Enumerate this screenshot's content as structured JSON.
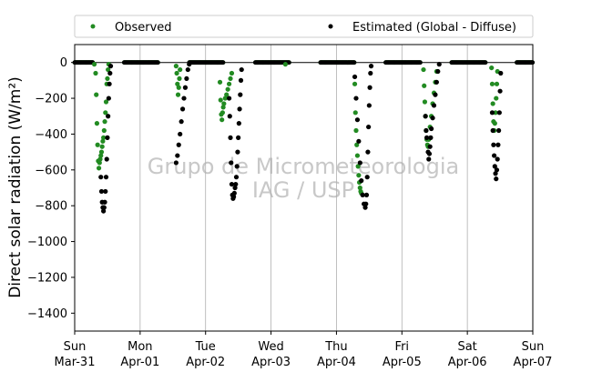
{
  "chart_data": {
    "type": "scatter",
    "title": "",
    "ylabel": "Direct solar radiation (W/m²)",
    "ylim": [
      -1500,
      100
    ],
    "yticks": [
      0,
      -200,
      -400,
      -600,
      -800,
      -1000,
      -1200,
      -1400
    ],
    "xlim_days": [
      0,
      7
    ],
    "xticks": [
      {
        "day": 0,
        "line1": "Sun",
        "line2": "Mar-31"
      },
      {
        "day": 1,
        "line1": "Mon",
        "line2": "Apr-01"
      },
      {
        "day": 2,
        "line1": "Tue",
        "line2": "Apr-02"
      },
      {
        "day": 3,
        "line1": "Wed",
        "line2": "Apr-03"
      },
      {
        "day": 4,
        "line1": "Thu",
        "line2": "Apr-04"
      },
      {
        "day": 5,
        "line1": "Fri",
        "line2": "Apr-05"
      },
      {
        "day": 6,
        "line1": "Sat",
        "line2": "Apr-06"
      },
      {
        "day": 7,
        "line1": "Sun",
        "line2": "Apr-07"
      }
    ],
    "grid": "vertical",
    "legend_placement": "top, outside plot",
    "watermark": [
      "Grupo de Micrometeorologia",
      "IAG / USP"
    ],
    "series": [
      {
        "name": "Observed",
        "color": "#228b22",
        "points": [
          [
            0.3,
            -10
          ],
          [
            0.32,
            -60
          ],
          [
            0.33,
            -180
          ],
          [
            0.34,
            -340
          ],
          [
            0.35,
            -460
          ],
          [
            0.36,
            -550
          ],
          [
            0.37,
            -590
          ],
          [
            0.38,
            -560
          ],
          [
            0.39,
            -540
          ],
          [
            0.4,
            -520
          ],
          [
            0.41,
            -500
          ],
          [
            0.42,
            -470
          ],
          [
            0.43,
            -440
          ],
          [
            0.44,
            -420
          ],
          [
            0.45,
            -380
          ],
          [
            0.46,
            -330
          ],
          [
            0.47,
            -280
          ],
          [
            0.48,
            -220
          ],
          [
            0.49,
            -120
          ],
          [
            0.5,
            -90
          ],
          [
            0.51,
            -40
          ],
          [
            0.52,
            -10
          ],
          [
            1.55,
            -20
          ],
          [
            1.56,
            -60
          ],
          [
            1.57,
            -120
          ],
          [
            1.58,
            -180
          ],
          [
            1.59,
            -140
          ],
          [
            1.6,
            -90
          ],
          [
            1.61,
            -40
          ],
          [
            2.22,
            -110
          ],
          [
            2.23,
            -210
          ],
          [
            2.24,
            -290
          ],
          [
            2.25,
            -320
          ],
          [
            2.26,
            -280
          ],
          [
            2.27,
            -250
          ],
          [
            2.28,
            -230
          ],
          [
            2.3,
            -200
          ],
          [
            2.32,
            -180
          ],
          [
            2.34,
            -150
          ],
          [
            2.36,
            -120
          ],
          [
            2.38,
            -90
          ],
          [
            2.4,
            -60
          ],
          [
            3.22,
            -10
          ],
          [
            4.28,
            -120
          ],
          [
            4.29,
            -280
          ],
          [
            4.3,
            -380
          ],
          [
            4.31,
            -460
          ],
          [
            4.32,
            -520
          ],
          [
            4.33,
            -580
          ],
          [
            4.34,
            -630
          ],
          [
            4.35,
            -670
          ],
          [
            4.36,
            -700
          ],
          [
            4.37,
            -720
          ],
          [
            4.38,
            -730
          ],
          [
            5.33,
            -40
          ],
          [
            5.34,
            -130
          ],
          [
            5.35,
            -220
          ],
          [
            5.36,
            -300
          ],
          [
            5.37,
            -380
          ],
          [
            5.38,
            -430
          ],
          [
            5.39,
            -460
          ],
          [
            5.4,
            -470
          ],
          [
            5.41,
            -430
          ],
          [
            5.43,
            -360
          ],
          [
            5.45,
            -300
          ],
          [
            5.47,
            -230
          ],
          [
            5.49,
            -170
          ],
          [
            5.51,
            -110
          ],
          [
            5.53,
            -50
          ],
          [
            6.37,
            -30
          ],
          [
            6.38,
            -120
          ],
          [
            6.39,
            -230
          ],
          [
            6.4,
            -330
          ],
          [
            6.41,
            -380
          ],
          [
            6.42,
            -340
          ],
          [
            6.43,
            -280
          ],
          [
            6.44,
            -200
          ],
          [
            6.45,
            -120
          ],
          [
            6.46,
            -50
          ]
        ]
      },
      {
        "name": "Estimated (Global - Diffuse)",
        "color": "#000000",
        "points": [
          [
            0.4,
            -640
          ],
          [
            0.41,
            -720
          ],
          [
            0.42,
            -780
          ],
          [
            0.43,
            -810
          ],
          [
            0.44,
            -830
          ],
          [
            0.45,
            -810
          ],
          [
            0.46,
            -780
          ],
          [
            0.47,
            -720
          ],
          [
            0.48,
            -640
          ],
          [
            0.49,
            -540
          ],
          [
            0.5,
            -420
          ],
          [
            0.51,
            -300
          ],
          [
            0.52,
            -200
          ],
          [
            0.53,
            -120
          ],
          [
            0.54,
            -60
          ],
          [
            0.55,
            -20
          ],
          [
            1.55,
            -560
          ],
          [
            1.57,
            -520
          ],
          [
            1.59,
            -460
          ],
          [
            1.61,
            -400
          ],
          [
            1.63,
            -330
          ],
          [
            1.65,
            -260
          ],
          [
            1.67,
            -200
          ],
          [
            1.69,
            -140
          ],
          [
            1.71,
            -90
          ],
          [
            1.73,
            -40
          ],
          [
            1.75,
            -10
          ],
          [
            2.36,
            -200
          ],
          [
            2.37,
            -300
          ],
          [
            2.38,
            -420
          ],
          [
            2.39,
            -560
          ],
          [
            2.4,
            -680
          ],
          [
            2.41,
            -740
          ],
          [
            2.42,
            -760
          ],
          [
            2.43,
            -750
          ],
          [
            2.44,
            -730
          ],
          [
            2.45,
            -700
          ],
          [
            2.46,
            -680
          ],
          [
            2.47,
            -640
          ],
          [
            2.48,
            -580
          ],
          [
            2.49,
            -500
          ],
          [
            2.5,
            -420
          ],
          [
            2.51,
            -340
          ],
          [
            2.52,
            -260
          ],
          [
            2.53,
            -180
          ],
          [
            2.54,
            -100
          ],
          [
            2.55,
            -40
          ],
          [
            4.28,
            -80
          ],
          [
            4.3,
            -200
          ],
          [
            4.32,
            -320
          ],
          [
            4.34,
            -440
          ],
          [
            4.36,
            -560
          ],
          [
            4.38,
            -660
          ],
          [
            4.4,
            -740
          ],
          [
            4.42,
            -790
          ],
          [
            4.44,
            -810
          ],
          [
            4.45,
            -790
          ],
          [
            4.46,
            -740
          ],
          [
            4.47,
            -640
          ],
          [
            4.48,
            -500
          ],
          [
            4.49,
            -360
          ],
          [
            4.5,
            -240
          ],
          [
            4.51,
            -140
          ],
          [
            4.52,
            -60
          ],
          [
            4.53,
            -20
          ],
          [
            5.36,
            -300
          ],
          [
            5.37,
            -380
          ],
          [
            5.38,
            -420
          ],
          [
            5.4,
            -500
          ],
          [
            5.41,
            -540
          ],
          [
            5.42,
            -510
          ],
          [
            5.43,
            -470
          ],
          [
            5.44,
            -420
          ],
          [
            5.45,
            -370
          ],
          [
            5.47,
            -310
          ],
          [
            5.49,
            -240
          ],
          [
            5.51,
            -180
          ],
          [
            5.53,
            -110
          ],
          [
            5.55,
            -50
          ],
          [
            5.57,
            -10
          ],
          [
            6.38,
            -280
          ],
          [
            6.39,
            -380
          ],
          [
            6.4,
            -460
          ],
          [
            6.41,
            -520
          ],
          [
            6.42,
            -580
          ],
          [
            6.43,
            -620
          ],
          [
            6.44,
            -650
          ],
          [
            6.45,
            -600
          ],
          [
            6.46,
            -540
          ],
          [
            6.47,
            -460
          ],
          [
            6.48,
            -380
          ],
          [
            6.49,
            -280
          ],
          [
            6.5,
            -160
          ],
          [
            6.51,
            -60
          ]
        ]
      }
    ]
  }
}
